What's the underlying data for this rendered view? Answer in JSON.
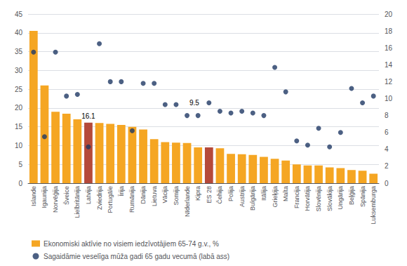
{
  "chart_data": {
    "type": "bar",
    "categories": [
      "Islande",
      "Igaunija",
      "Norvēģija",
      "Šveice",
      "Lielbritānija",
      "Latvija",
      "Zviedrija",
      "Portugāle",
      "Īrija",
      "Rumānija",
      "Dānija",
      "Lietuva",
      "Vācija",
      "Somija",
      "Nīderlande",
      "Kipra",
      "ES 28",
      "Čehija",
      "Polija",
      "Austrija",
      "Bulgārija",
      "Itālija",
      "Grieķija",
      "Malta",
      "Francija",
      "Horvātija",
      "Slovēnija",
      "Slovākija",
      "Ungārija",
      "Beļģija",
      "Spānija",
      "Luksemburga"
    ],
    "series": [
      {
        "name": "Ekonomiski aktīvie no visiem iedzīvotājiem 65-74 g.v., %",
        "type": "bar",
        "color": "#F5A623",
        "colors": [
          "#F5A623",
          "#F5A623",
          "#F5A623",
          "#F5A623",
          "#F5A623",
          "#B5493A",
          "#F5A623",
          "#F5A623",
          "#F5A623",
          "#F5A623",
          "#F5A623",
          "#F5A623",
          "#F5A623",
          "#F5A623",
          "#F5A623",
          "#F5A623",
          "#B5493A",
          "#F5A623",
          "#F5A623",
          "#F5A623",
          "#F5A623",
          "#F5A623",
          "#F5A623",
          "#F5A623",
          "#F5A623",
          "#F5A623",
          "#F5A623",
          "#F5A623",
          "#F5A623",
          "#F5A623",
          "#F5A623",
          "#F5A623"
        ],
        "values": [
          40.5,
          26.0,
          19.0,
          18.5,
          17.0,
          16.1,
          16.0,
          15.8,
          15.5,
          15.0,
          14.3,
          11.7,
          10.9,
          10.8,
          10.7,
          9.5,
          9.5,
          9.3,
          7.8,
          7.7,
          7.5,
          7.0,
          6.5,
          6.0,
          5.0,
          4.7,
          4.7,
          4.2,
          4.0,
          3.5,
          3.3,
          2.5
        ]
      },
      {
        "name": "Sagaidāmie veselīga mūža gadi 65 gadu vecumā (labā ass)",
        "type": "scatter",
        "axis": "y2",
        "color": "#1F3864",
        "marker": "circle",
        "values": [
          15.5,
          5.5,
          15.5,
          10.3,
          10.5,
          4.3,
          16.5,
          12.0,
          12.0,
          6.2,
          11.8,
          11.8,
          9.3,
          9.3,
          8.0,
          8.0,
          9.5,
          8.5,
          8.3,
          8.5,
          8.3,
          8.0,
          13.7,
          10.8,
          5.0,
          4.5,
          6.5,
          4.3,
          6.0,
          11.2,
          9.5,
          10.3
        ]
      }
    ],
    "annotations": [
      {
        "text": "16.1",
        "x": "Latvija",
        "y": 16.1
      },
      {
        "text": "9.5",
        "x": "ES 28",
        "y": 9.5,
        "axis": "y2"
      }
    ],
    "ylim": [
      0,
      45
    ],
    "yticks": [
      0,
      5,
      10,
      15,
      20,
      25,
      30,
      35,
      40,
      45
    ],
    "y2lim": [
      0,
      20
    ],
    "y2ticks": [
      0,
      2,
      4,
      6,
      8,
      10,
      12,
      14,
      16,
      18,
      20
    ],
    "grid": true,
    "legend": "bottom left"
  }
}
